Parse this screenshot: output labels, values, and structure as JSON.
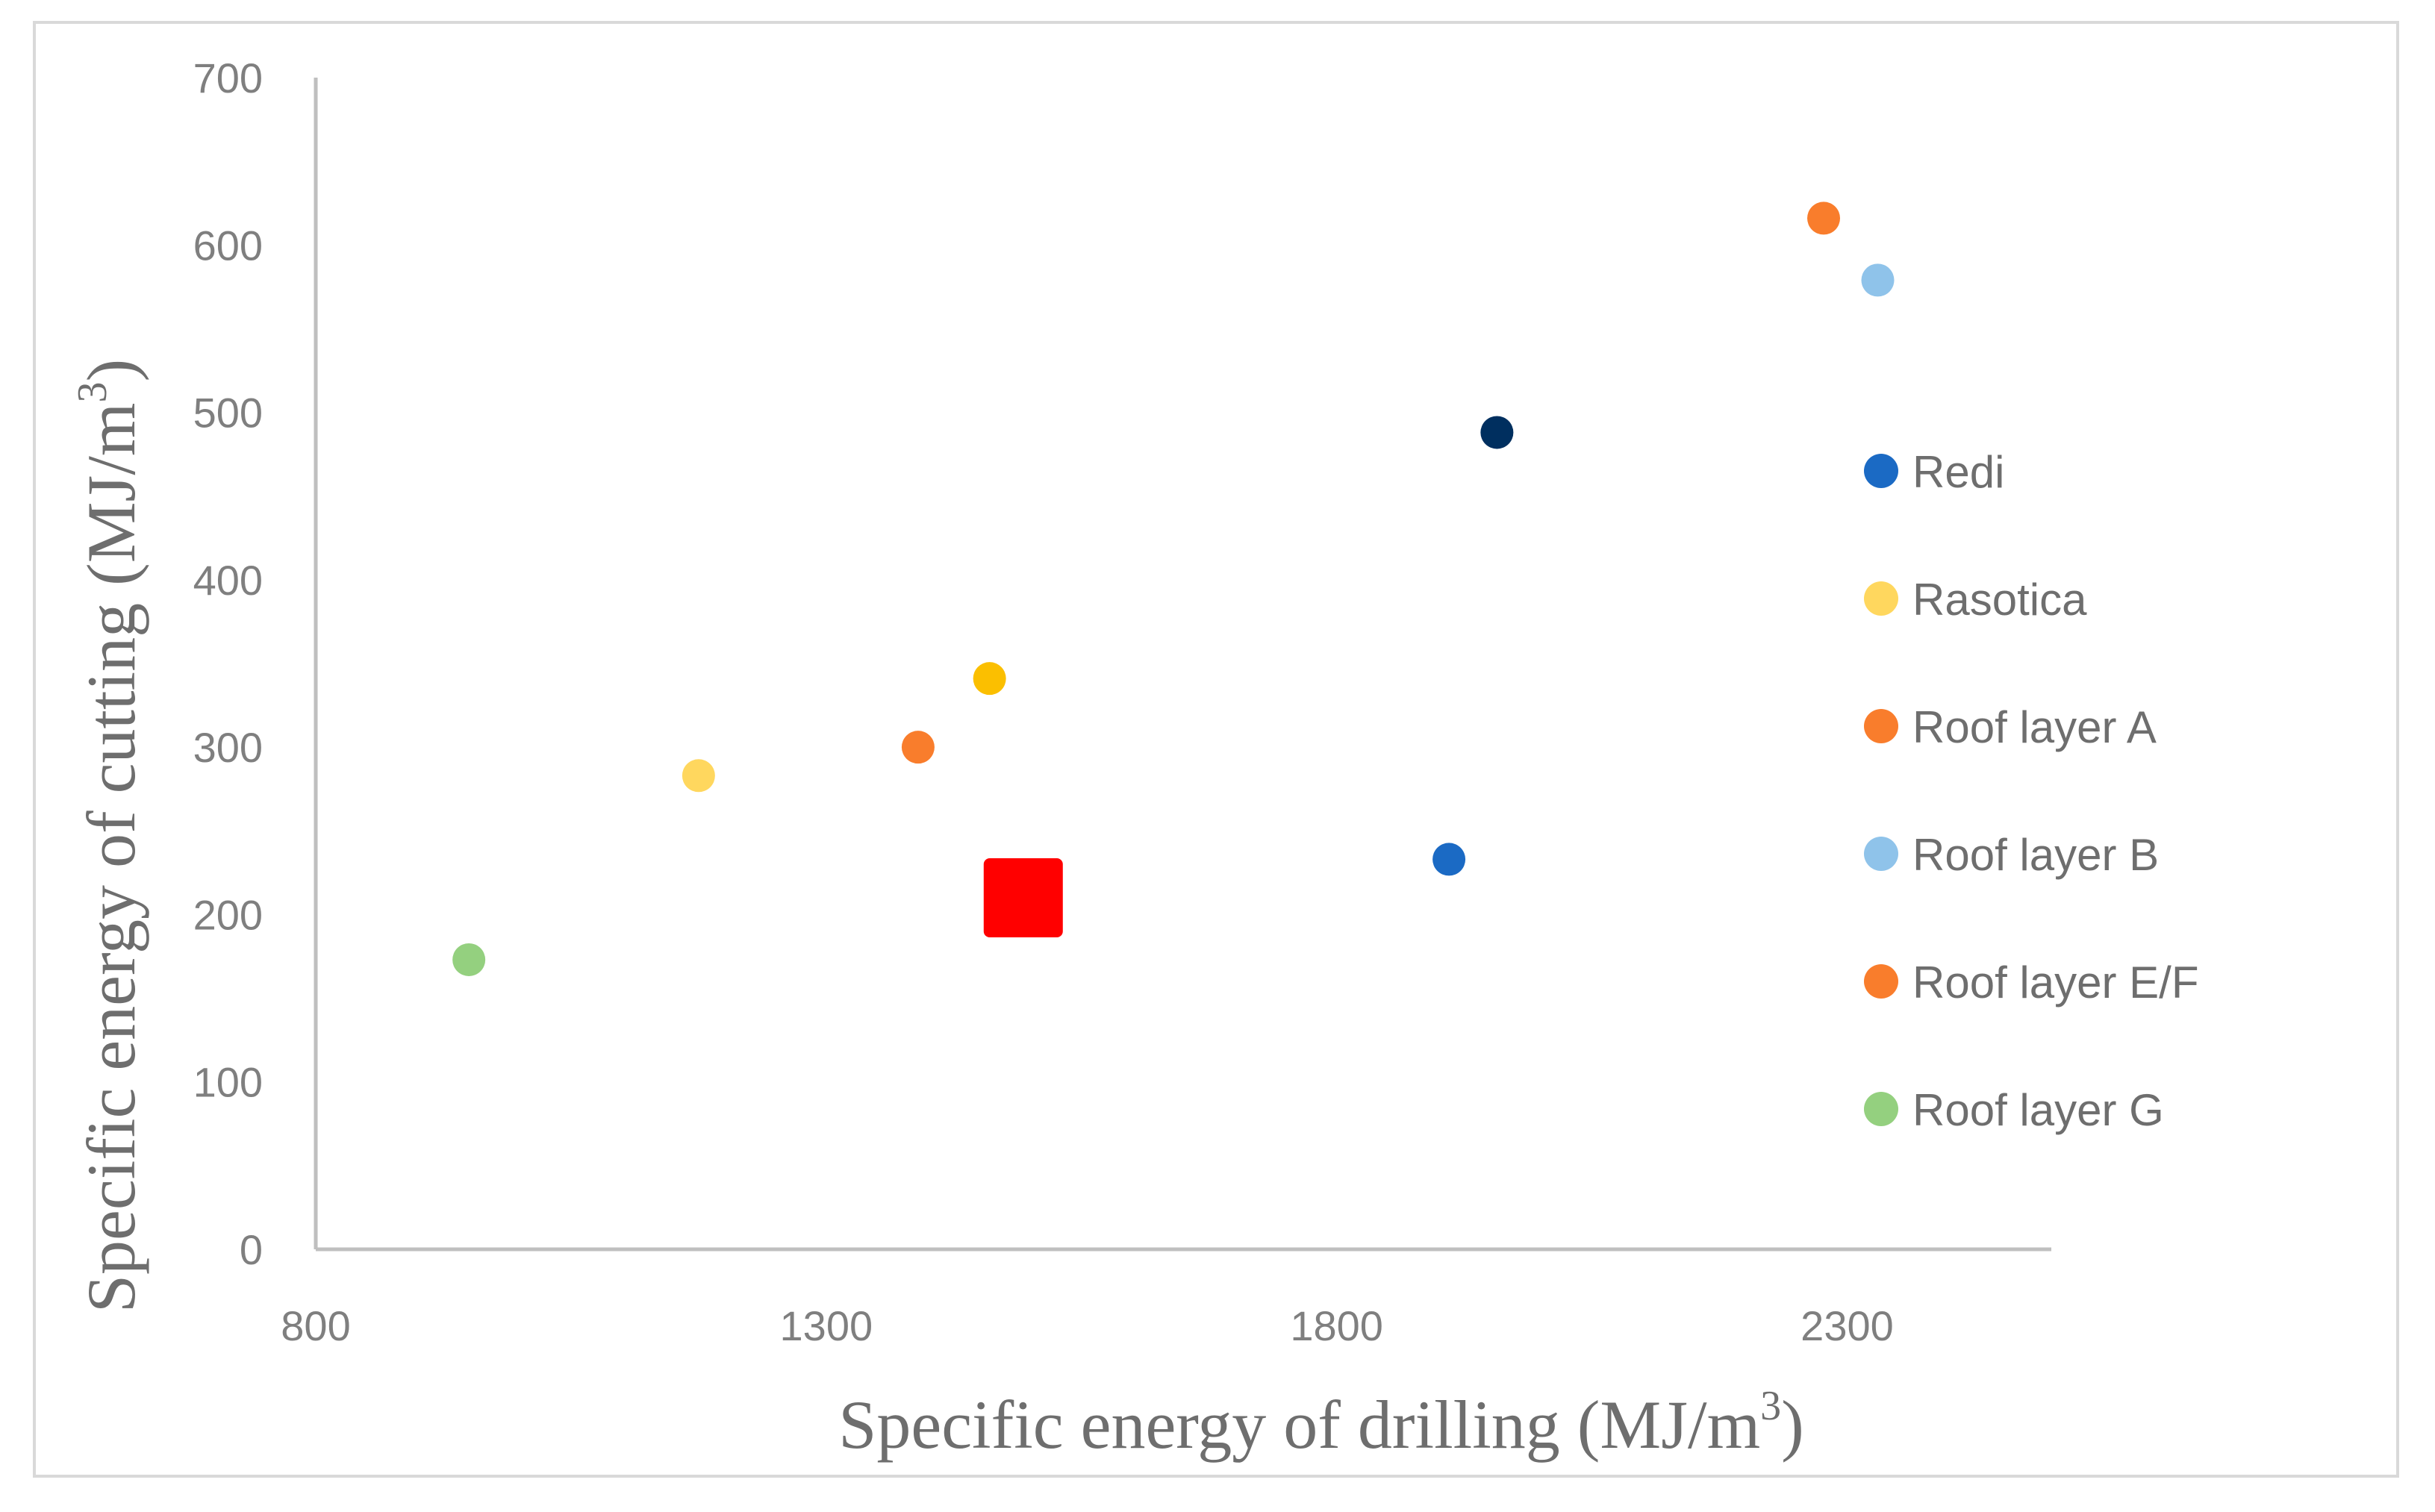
{
  "chart_data": {
    "type": "scatter",
    "title": "",
    "xlabel": {
      "text": "Specific energy of drilling (MJ/m",
      "sup": "3",
      "close": ")"
    },
    "ylabel": {
      "text": "Specific energy of cutting (MJ/m",
      "sup": "3",
      "close": ")"
    },
    "xlim": [
      800,
      2500
    ],
    "ylim": [
      0,
      700
    ],
    "xticks": [
      800,
      1300,
      1800,
      2300
    ],
    "yticks": [
      0,
      100,
      200,
      300,
      400,
      500,
      600,
      700
    ],
    "grid": false,
    "legend_position": "right",
    "series": [
      {
        "name": "Redi",
        "color": "#1b6ac4",
        "marker": "circle",
        "points": [
          {
            "x": 1910,
            "y": 233
          }
        ]
      },
      {
        "name": "Rasotica",
        "color": "#ffd75e",
        "marker": "circle",
        "points": [
          {
            "x": 1175,
            "y": 283
          }
        ]
      },
      {
        "name": "Roof layer A",
        "color": "#f97d2c",
        "marker": "circle",
        "points": [
          {
            "x": 1390,
            "y": 300
          }
        ]
      },
      {
        "name": "Roof layer B",
        "color": "#8fc3ea",
        "marker": "circle",
        "points": [
          {
            "x": 2330,
            "y": 579
          }
        ]
      },
      {
        "name": "Roof layer E/F",
        "color": "#f97d2c",
        "marker": "circle",
        "points": [
          {
            "x": 2277,
            "y": 616
          }
        ]
      },
      {
        "name": "Roof layer G",
        "color": "#94d07f",
        "marker": "circle",
        "points": [
          {
            "x": 950,
            "y": 173
          }
        ]
      }
    ],
    "extra_points": [
      {
        "label": "unlabeled-navy",
        "color": "#002f5f",
        "marker": "circle",
        "x": 1957,
        "y": 488
      },
      {
        "label": "unlabeled-gold",
        "color": "#fbbf00",
        "marker": "circle",
        "x": 1460,
        "y": 341
      },
      {
        "label": "unlabeled-red-square",
        "color": "#ff0000",
        "marker": "square",
        "x": 1493,
        "y": 210
      }
    ]
  }
}
